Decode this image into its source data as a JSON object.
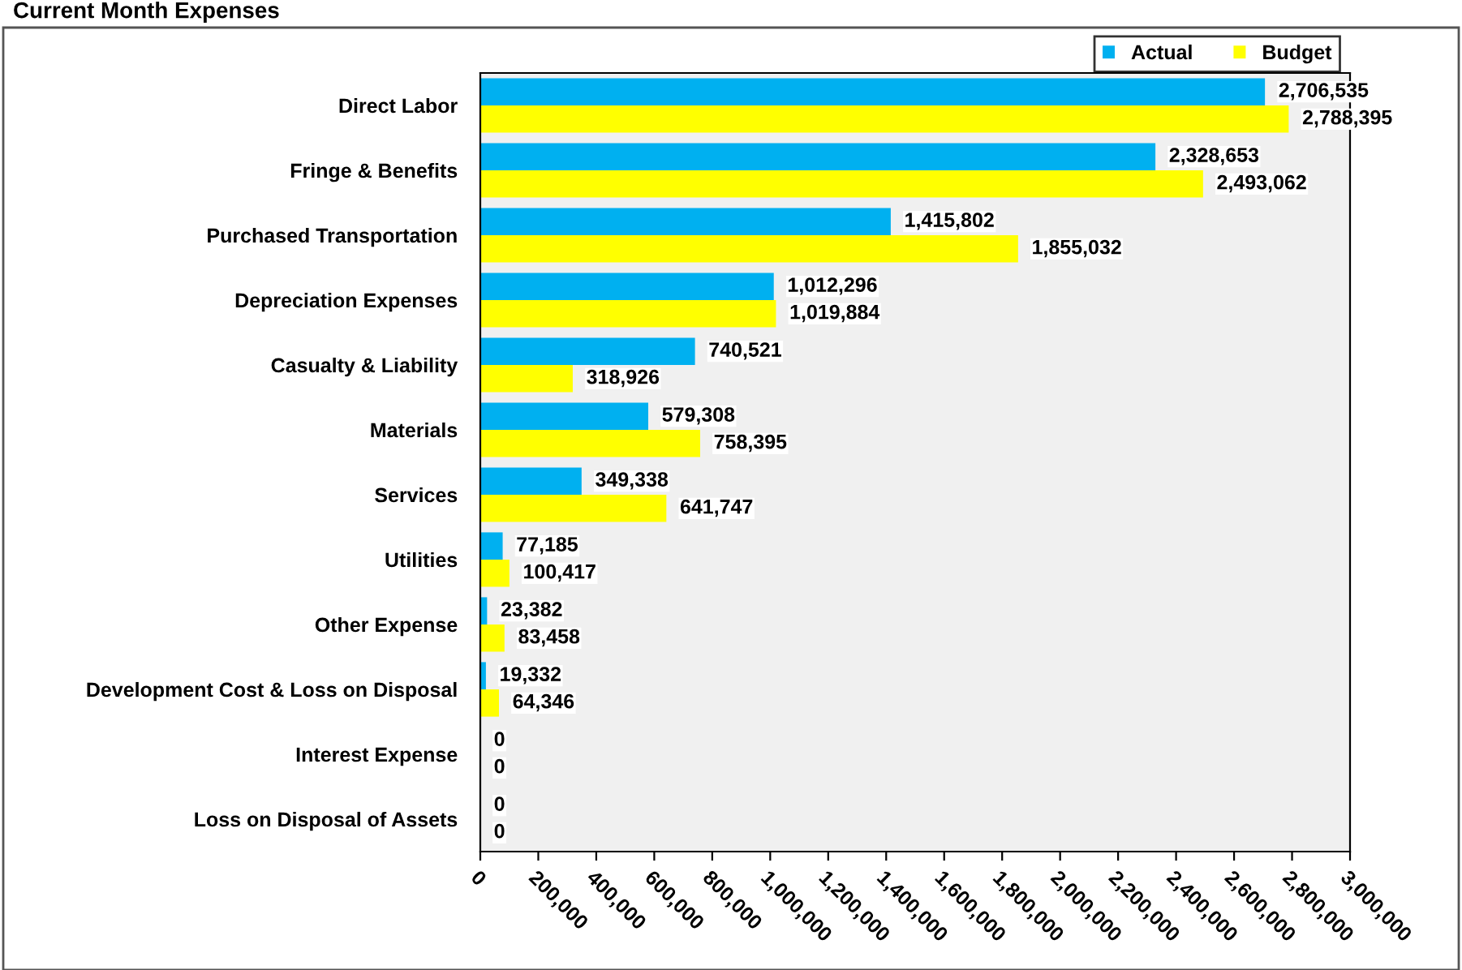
{
  "chart_data": {
    "type": "bar",
    "orientation": "horizontal",
    "title": "Current Month Expenses",
    "categories": [
      "Direct Labor",
      "Fringe & Benefits",
      "Purchased Transportation",
      "Depreciation Expenses",
      "Casualty & Liability",
      "Materials",
      "Services",
      "Utilities",
      "Other Expense",
      "Development Cost & Loss on Disposal",
      "Interest Expense",
      "Loss on Disposal of Assets"
    ],
    "series": [
      {
        "name": "Actual",
        "color": "#00b0f0",
        "values": [
          2706535,
          2328653,
          1415802,
          1012296,
          740521,
          579308,
          349338,
          77185,
          23382,
          19332,
          0,
          0
        ],
        "value_labels": [
          "2,706,535",
          "2,328,653",
          "1,415,802",
          "1,012,296",
          "740,521",
          "579,308",
          "349,338",
          "77,185",
          "23,382",
          "19,332",
          "0",
          "0"
        ]
      },
      {
        "name": "Budget",
        "color": "#ffff00",
        "values": [
          2788395,
          2493062,
          1855032,
          1019884,
          318926,
          758395,
          641747,
          100417,
          83458,
          64346,
          0,
          0
        ],
        "value_labels": [
          "2,788,395",
          "2,493,062",
          "1,855,032",
          "1,019,884",
          "318,926",
          "758,395",
          "641,747",
          "100,417",
          "83,458",
          "64,346",
          "0",
          "0"
        ]
      }
    ],
    "xlim": [
      0,
      3000000
    ],
    "xticks": [
      {
        "value": 0,
        "label": "0"
      },
      {
        "value": 200000,
        "label": "200,000"
      },
      {
        "value": 400000,
        "label": "400,000"
      },
      {
        "value": 600000,
        "label": "600,000"
      },
      {
        "value": 800000,
        "label": "800,000"
      },
      {
        "value": 1000000,
        "label": "1,000,000"
      },
      {
        "value": 1200000,
        "label": "1,200,000"
      },
      {
        "value": 1400000,
        "label": "1,400,000"
      },
      {
        "value": 1600000,
        "label": "1,600,000"
      },
      {
        "value": 1800000,
        "label": "1,800,000"
      },
      {
        "value": 2000000,
        "label": "2,000,000"
      },
      {
        "value": 2200000,
        "label": "2,200,000"
      },
      {
        "value": 2400000,
        "label": "2,400,000"
      },
      {
        "value": 2600000,
        "label": "2,600,000"
      },
      {
        "value": 2800000,
        "label": "2,800,000"
      },
      {
        "value": 3000000,
        "label": "3,000,000"
      }
    ],
    "legend": "top right",
    "grid": false
  }
}
